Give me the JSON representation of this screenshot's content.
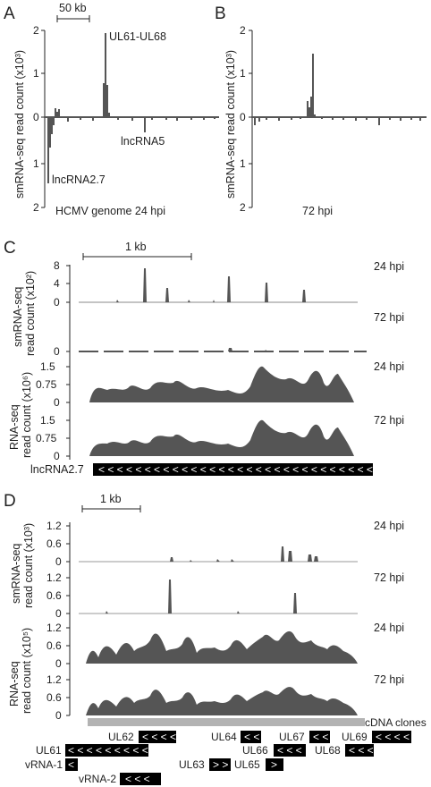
{
  "panels": {
    "A": {
      "letter": "A",
      "scale_label": "50 kb",
      "ylabel": "smRNA-seq read count (x10³)",
      "yticks_top": [
        "2",
        "1",
        "0"
      ],
      "yticks_bottom": [
        "1",
        "2"
      ],
      "annotations": [
        "UL61-UL68",
        "lncRNA5",
        "lncRNA2.7"
      ],
      "caption": "HCMV genome 24 hpi"
    },
    "B": {
      "letter": "B",
      "ylabel": "smRNA-seq read count (x10³)",
      "yticks_top": [
        "2",
        "1",
        "0"
      ],
      "yticks_bottom": [
        "1",
        "2"
      ],
      "caption": "72 hpi"
    },
    "C": {
      "letter": "C",
      "scale_label": "1 kb",
      "sm_ylabel": [
        "smRNA-seq",
        "read count (x10²)"
      ],
      "rna_ylabel": [
        "RNA-seq",
        "read count (x10⁶)"
      ],
      "sm_ticks": [
        "8",
        "4",
        "0"
      ],
      "sm_ticks_b": [
        "8",
        "4",
        "0"
      ],
      "rna_ticks": [
        "1.5",
        "0.75",
        "0"
      ],
      "tracks": [
        "24 hpi",
        "72 hpi",
        "24 hpi",
        "72 hpi"
      ],
      "gene_label": "lncRNA2.7",
      "gene_arrows": "< < < < < < < < < < < < < < < < < < < < < < < < < < < < < <"
    },
    "D": {
      "letter": "D",
      "scale_label": "1 kb",
      "sm_ylabel": [
        "smRNA-seq",
        "read count (x10³)"
      ],
      "rna_ylabel": [
        "RNA-seq",
        "read count (x10⁵)"
      ],
      "ticks": [
        "1.2",
        "0.6",
        "0"
      ],
      "tracks": [
        "24 hpi",
        "72 hpi",
        "24 hpi",
        "72 hpi"
      ],
      "cdna_label": "cDNA clones",
      "genes": {
        "UL62": "UL62",
        "UL62_arrows": "< < < <",
        "UL64": "UL64",
        "UL64_arrows": "< <",
        "UL67": "UL67",
        "UL67_arrows": "< <",
        "UL69": "UL69",
        "UL69_arrows": "< < < <",
        "UL61": "UL61",
        "UL61_arrows": "< < < < < < < < <",
        "UL66": "UL66",
        "UL66_arrows": "< < <",
        "UL68": "UL68",
        "UL68_arrows": "< < <",
        "vRNA1": "vRNA-1",
        "vRNA1_arrows": "<",
        "UL63": "UL63",
        "UL63_arrows": "> >",
        "UL65": "UL65",
        "UL65_arrows": ">",
        "vRNA2": "vRNA-2",
        "vRNA2_arrows": "< < <"
      }
    }
  },
  "colors": {
    "trace": "#555555",
    "axis": "#222222",
    "bar": "#000000",
    "cdna": "#b3b3b3"
  }
}
